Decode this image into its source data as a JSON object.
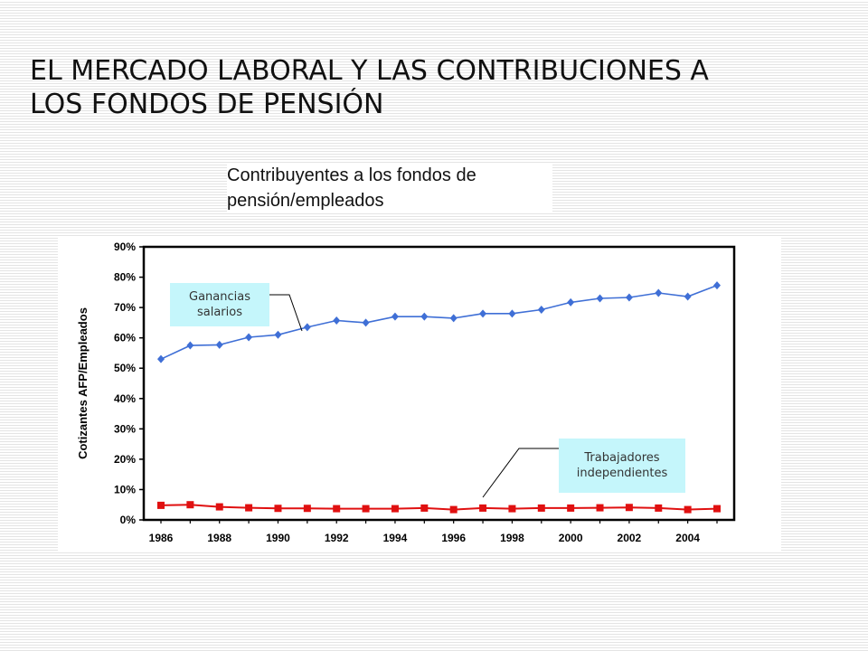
{
  "slide": {
    "title_line1": "EL MERCADO LABORAL Y LAS CONTRIBUCIONES A",
    "title_line2": "LOS FONDOS DE PENSIÓN"
  },
  "chart_title": "Contribuyentes a los fondos de pensión/empleados",
  "callouts": {
    "wages": "Ganancias salarios",
    "independent": "Trabajadores independientes"
  },
  "colors": {
    "wages_series": "#3f6fd6",
    "independent_series": "#e01010",
    "callout_bg": "#c5f6fb"
  },
  "chart_data": {
    "type": "line",
    "ylabel": "Cotizantes AFP/Empleados",
    "xlabel": "",
    "ylim": [
      0,
      90
    ],
    "y_ticks": [
      "0%",
      "10%",
      "20%",
      "30%",
      "40%",
      "50%",
      "60%",
      "70%",
      "80%",
      "90%"
    ],
    "x_ticks": [
      "1986",
      "1988",
      "1990",
      "1992",
      "1994",
      "1996",
      "1998",
      "2000",
      "2002",
      "2004"
    ],
    "x": [
      1986,
      1987,
      1988,
      1989,
      1990,
      1991,
      1992,
      1993,
      1994,
      1995,
      1996,
      1997,
      1998,
      1999,
      2000,
      2001,
      2002,
      2003,
      2004,
      2005
    ],
    "grid": false,
    "legend": "none",
    "series": [
      {
        "name": "Ganancias salarios",
        "marker": "diamond",
        "values": [
          53,
          57.5,
          57.7,
          60.2,
          61,
          63.5,
          65.7,
          65,
          67,
          67,
          66.5,
          68,
          68,
          69.3,
          71.7,
          73,
          73.3,
          74.8,
          73.6,
          77.3
        ]
      },
      {
        "name": "Trabajadores independientes",
        "marker": "square",
        "values": [
          4.8,
          5,
          4.3,
          4,
          3.8,
          3.8,
          3.7,
          3.7,
          3.7,
          3.9,
          3.4,
          3.9,
          3.7,
          3.9,
          3.9,
          4,
          4.1,
          3.9,
          3.4,
          3.7
        ]
      }
    ]
  }
}
